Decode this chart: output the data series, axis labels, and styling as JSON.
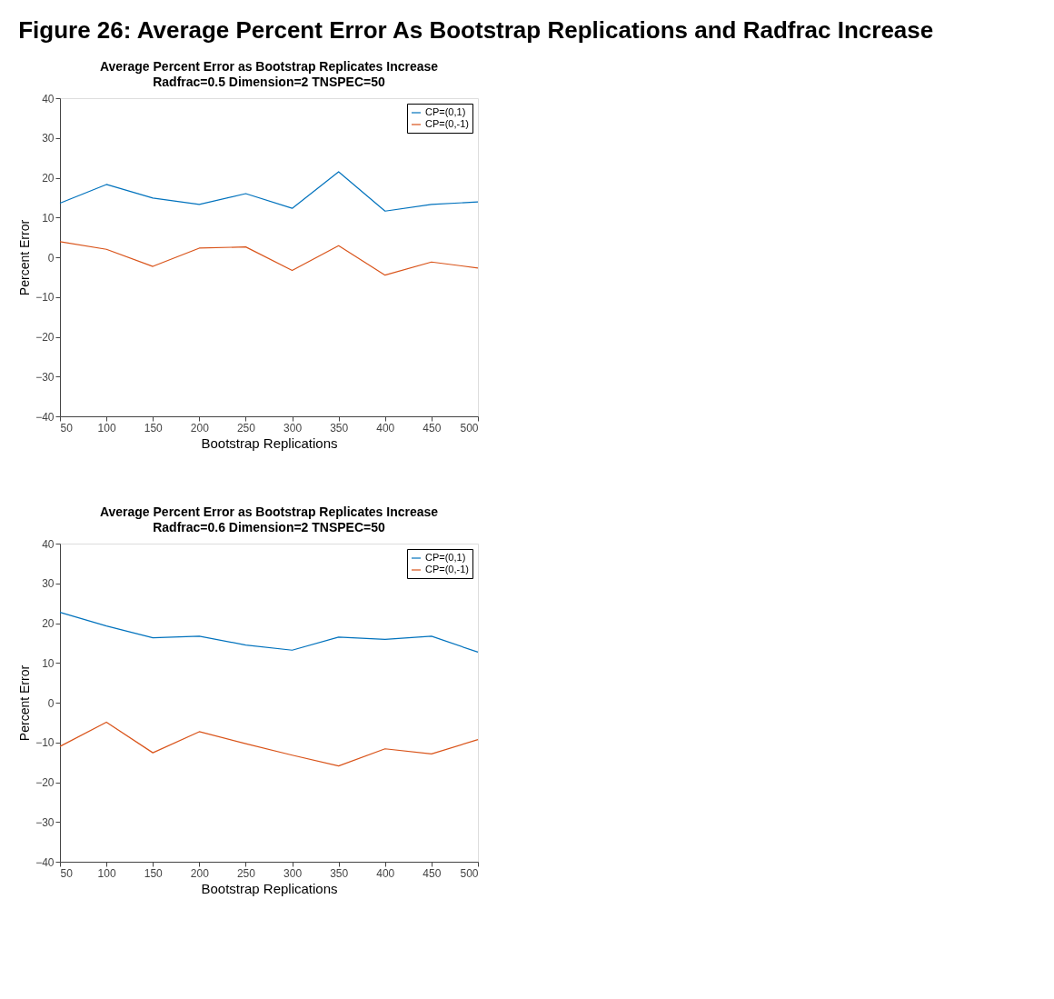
{
  "chart_data": [
    {
      "type": "line",
      "annotations": [
        "Figure 26: Average Percent Error As Bootstrap Replications and Radfrac Increase"
      ],
      "title": "Average Percent Error as Bootstrap Replicates Increase",
      "subtitle": "Radfrac=0.5 Dimension=2 TNSPEC=50",
      "xlabel": "Bootstrap Replications",
      "ylabel": "Percent Error",
      "x": [
        50,
        100,
        150,
        200,
        250,
        300,
        350,
        400,
        450,
        500
      ],
      "series": [
        {
          "name": "CP=(0,1)",
          "color": "#0072bd",
          "values": [
            13.6,
            18.3,
            14.9,
            13.3,
            16.0,
            12.3,
            21.5,
            11.6,
            13.3,
            13.9
          ]
        },
        {
          "name": "CP=(0,-1)",
          "color": "#d95319",
          "values": [
            3.9,
            2.0,
            -2.3,
            2.3,
            2.6,
            -3.3,
            2.9,
            -4.5,
            -1.2,
            -2.7
          ]
        }
      ],
      "xlim": [
        50,
        500
      ],
      "xticks": [
        50,
        100,
        150,
        200,
        250,
        300,
        350,
        400,
        450,
        500
      ],
      "ylim": [
        -40,
        40
      ],
      "yticks": [
        -40,
        -30,
        -20,
        -10,
        0,
        10,
        20,
        30,
        40
      ],
      "grid": false,
      "legend": "top right",
      "marker": "none",
      "line_style": "solid"
    },
    {
      "type": "line",
      "title": "Average Percent Error as Bootstrap Replicates Increase",
      "subtitle": "Radfrac=0.6 Dimension=2 TNSPEC=50",
      "xlabel": "Bootstrap Replications",
      "ylabel": "Percent Error",
      "x": [
        50,
        100,
        150,
        200,
        250,
        300,
        350,
        400,
        450,
        500
      ],
      "series": [
        {
          "name": "CP=(0,1)",
          "color": "#0072bd",
          "values": [
            22.7,
            19.3,
            16.3,
            16.7,
            14.5,
            13.2,
            16.5,
            15.9,
            16.7,
            12.7
          ]
        },
        {
          "name": "CP=(0,-1)",
          "color": "#d95319",
          "values": [
            -11.0,
            -4.9,
            -12.6,
            -7.3,
            -10.3,
            -13.2,
            -15.9,
            -11.6,
            -12.9,
            -9.3
          ]
        }
      ],
      "xlim": [
        50,
        500
      ],
      "xticks": [
        50,
        100,
        150,
        200,
        250,
        300,
        350,
        400,
        450,
        500
      ],
      "ylim": [
        -40,
        40
      ],
      "yticks": [
        -40,
        -30,
        -20,
        -10,
        0,
        10,
        20,
        30,
        40
      ],
      "grid": false,
      "legend": "top right",
      "marker": "none",
      "line_style": "solid"
    }
  ]
}
